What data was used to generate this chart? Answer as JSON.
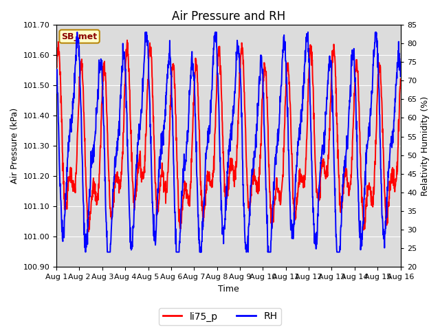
{
  "title": "Air Pressure and RH",
  "xlabel": "Time",
  "ylabel_left": "Air Pressure (kPa)",
  "ylabel_right": "Relativity Humidity (%)",
  "station_label": "SB_met",
  "legend_labels": [
    "li75_p",
    "RH"
  ],
  "legend_colors": [
    "red",
    "blue"
  ],
  "pressure_ylim": [
    100.9,
    101.7
  ],
  "rh_ylim": [
    20,
    85
  ],
  "pressure_yticks": [
    100.9,
    101.0,
    101.1,
    101.2,
    101.3,
    101.4,
    101.5,
    101.6,
    101.7
  ],
  "rh_yticks": [
    20,
    25,
    30,
    35,
    40,
    45,
    50,
    55,
    60,
    65,
    70,
    75,
    80,
    85
  ],
  "x_tick_labels": [
    "Aug 1",
    "Aug 2",
    "Aug 3",
    "Aug 4",
    "Aug 5",
    "Aug 6",
    "Aug 7",
    "Aug 8",
    "Aug 9",
    "Aug 10",
    "Aug 11",
    "Aug 12",
    "Aug 13",
    "Aug 14",
    "Aug 15",
    "Aug 16"
  ],
  "background_color": "#dcdcdc",
  "title_fontsize": 12,
  "axis_label_fontsize": 9,
  "tick_fontsize": 8,
  "line_width": 1.4
}
